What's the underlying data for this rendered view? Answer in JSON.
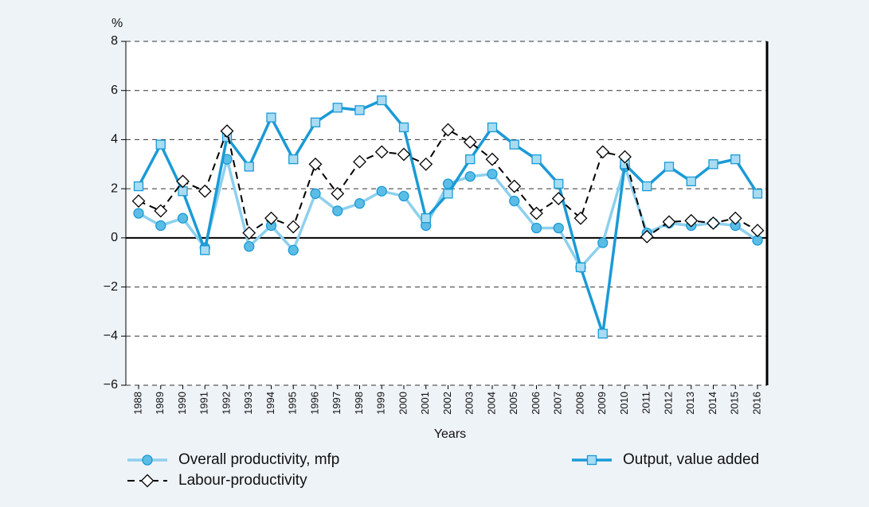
{
  "chart_data": {
    "type": "line",
    "y_label": "%",
    "x_label": "Years",
    "categories": [
      "1988",
      "1989",
      "1990",
      "1991",
      "1992",
      "1993",
      "1994",
      "1995",
      "1996",
      "1997",
      "1998",
      "1999",
      "2000",
      "2001",
      "2002",
      "2003",
      "2004",
      "2005",
      "2006",
      "2007",
      "2008",
      "2009",
      "2010",
      "2011",
      "2012",
      "2013",
      "2014",
      "2015",
      "2016"
    ],
    "series": [
      {
        "name": "Overall productivity, mfp",
        "color": "#8dd0ee",
        "marker": "circle",
        "marker_color": "#5bbde6",
        "values": [
          1.0,
          0.5,
          0.8,
          -0.4,
          3.2,
          -0.35,
          0.5,
          -0.5,
          1.8,
          1.1,
          1.4,
          1.9,
          1.7,
          0.5,
          2.2,
          2.5,
          2.6,
          1.5,
          0.4,
          0.4,
          -1.2,
          -0.2,
          2.9,
          0.2,
          0.6,
          0.5,
          0.6,
          0.5,
          -0.1
        ]
      },
      {
        "name": "Output, value added",
        "color": "#1a9ad6",
        "marker": "square",
        "marker_color": "#a8dcf3",
        "values": [
          2.1,
          3.8,
          1.9,
          -0.5,
          4.1,
          2.9,
          4.9,
          3.2,
          4.7,
          5.3,
          5.2,
          5.6,
          4.5,
          0.8,
          1.8,
          3.2,
          4.5,
          3.8,
          3.2,
          2.2,
          -1.2,
          -3.9,
          3.0,
          2.1,
          2.9,
          2.3,
          3.0,
          3.2,
          1.8
        ]
      },
      {
        "name": "Labour-productivity",
        "color": "#000000",
        "marker": "diamond",
        "marker_color": "#ffffff",
        "dashed": true,
        "values": [
          1.5,
          1.1,
          2.3,
          1.9,
          4.35,
          0.2,
          0.8,
          0.45,
          3.0,
          1.8,
          3.1,
          3.5,
          3.4,
          3.0,
          4.4,
          3.9,
          3.2,
          2.1,
          1.0,
          1.6,
          0.8,
          3.5,
          3.3,
          0.05,
          0.65,
          0.7,
          0.6,
          0.8,
          0.3
        ]
      }
    ],
    "ylim": [
      -6,
      8
    ],
    "yticks": [
      {
        "value": -6,
        "label": "−6"
      },
      {
        "value": -4,
        "label": "−4"
      },
      {
        "value": -2,
        "label": "−2"
      },
      0,
      2,
      4,
      6,
      8
    ],
    "grid": true
  }
}
